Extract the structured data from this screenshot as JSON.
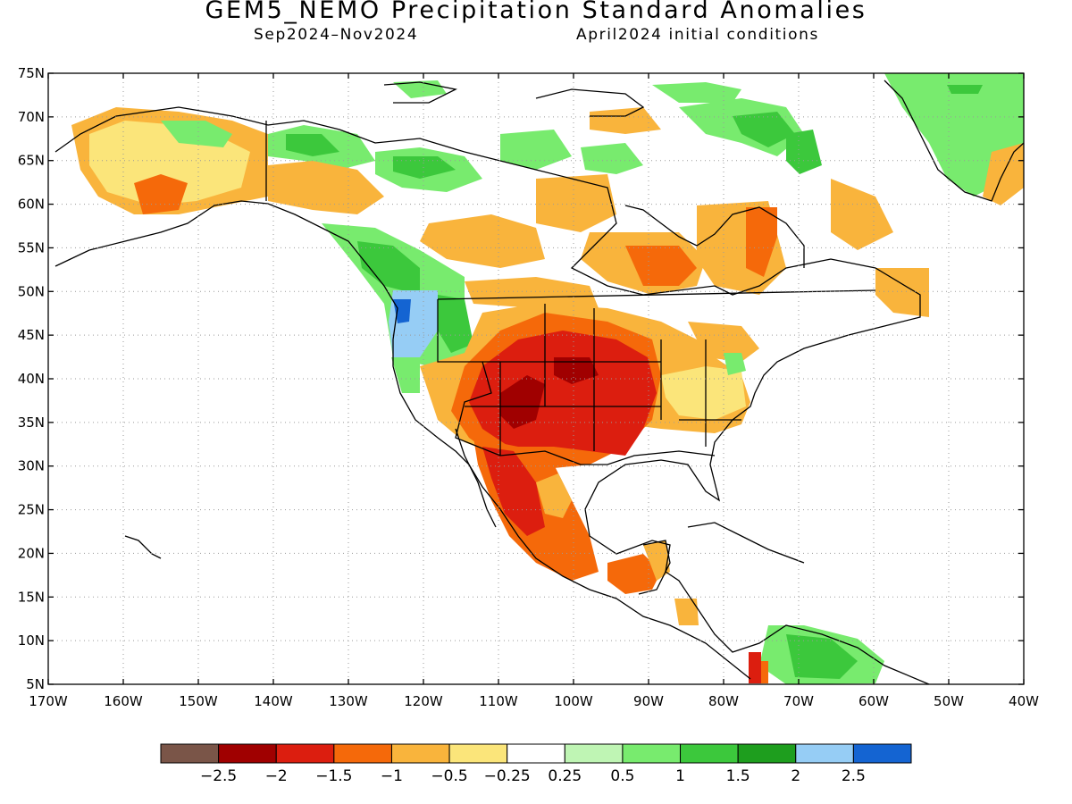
{
  "title": "GEM5_NEMO Precipitation Standard Anomalies",
  "period": "Sep2024–Nov2024",
  "init": "April2024 initial conditions",
  "lon_labels": [
    "170W",
    "160W",
    "150W",
    "140W",
    "130W",
    "120W",
    "110W",
    "100W",
    "90W",
    "80W",
    "70W",
    "60W",
    "50W",
    "40W"
  ],
  "lat_labels": [
    "75N",
    "70N",
    "65N",
    "60N",
    "55N",
    "50N",
    "45N",
    "40N",
    "35N",
    "30N",
    "25N",
    "20N",
    "15N",
    "10N",
    "5N"
  ],
  "legend": {
    "colors": [
      "#7a5548",
      "#a00000",
      "#dc1e0f",
      "#f5690a",
      "#f9b43c",
      "#fbe57a",
      "#ffffff",
      "#bff5b4",
      "#78eb6e",
      "#3cc83c",
      "#1e9e1e",
      "#96cdf5",
      "#1464d2"
    ],
    "labels": [
      "−2.5",
      "−2",
      "−1.5",
      "−1",
      "−0.5",
      "−0.25",
      "0.25",
      "0.5",
      "1",
      "1.5",
      "2",
      "2.5"
    ]
  }
}
